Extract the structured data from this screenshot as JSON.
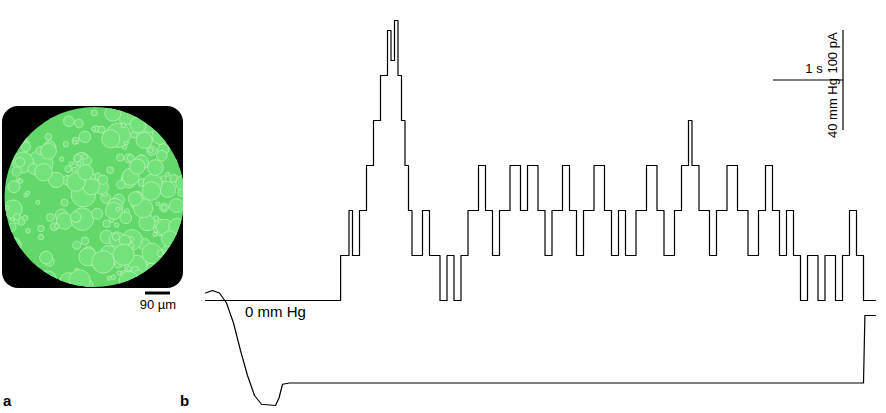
{
  "image_panel": {
    "letter": "a",
    "scale_bar_label": "90 µm"
  },
  "chart_data": {
    "letter": "b",
    "type": "line",
    "tick_labels": false,
    "color": "#000000",
    "xlim": [
      0,
      9.6
    ],
    "current_trace": {
      "line_style": "step",
      "ylim": [
        -220,
        580
      ],
      "x": [
        0,
        1.93,
        2.05,
        2.1,
        2.2,
        2.3,
        2.4,
        2.5,
        2.6,
        2.65,
        2.7,
        2.75,
        2.8,
        2.85,
        2.9,
        2.95,
        3.1,
        3.2,
        3.35,
        3.45,
        3.55,
        3.65,
        3.75,
        3.9,
        4.0,
        4.1,
        4.2,
        4.35,
        4.5,
        4.6,
        4.75,
        4.85,
        4.95,
        5.1,
        5.2,
        5.3,
        5.4,
        5.55,
        5.7,
        5.8,
        5.9,
        6.0,
        6.15,
        6.3,
        6.45,
        6.55,
        6.7,
        6.8,
        6.9,
        6.95,
        7.05,
        7.2,
        7.3,
        7.45,
        7.6,
        7.75,
        7.9,
        8.0,
        8.1,
        8.2,
        8.3,
        8.4,
        8.5,
        8.6,
        8.75,
        8.85,
        9.0,
        9.1,
        9.2,
        9.3,
        9.4,
        9.57
      ],
      "values": [
        0,
        90,
        180,
        90,
        180,
        270,
        360,
        450,
        540,
        480,
        560,
        450,
        360,
        270,
        180,
        90,
        180,
        90,
        0,
        90,
        0,
        90,
        180,
        270,
        180,
        90,
        180,
        270,
        180,
        270,
        180,
        90,
        180,
        270,
        180,
        90,
        180,
        270,
        180,
        90,
        180,
        90,
        180,
        270,
        180,
        90,
        180,
        270,
        360,
        270,
        180,
        90,
        180,
        270,
        180,
        90,
        180,
        270,
        180,
        90,
        180,
        90,
        0,
        90,
        0,
        90,
        0,
        90,
        180,
        90,
        0,
        0
      ]
    },
    "pressure_trace": {
      "line_style": "solid",
      "ylim": [
        -90,
        230
      ],
      "x": [
        0,
        0.1,
        0.2,
        0.3,
        0.4,
        0.5,
        0.6,
        0.7,
        0.8,
        1.0,
        1.05,
        1.1,
        1.2,
        9.4,
        9.42,
        9.57
      ],
      "values": [
        4,
        6,
        4,
        -4,
        -20,
        -42,
        -62,
        -78,
        -85,
        -86,
        -80,
        -69,
        -68,
        -68,
        -14,
        -14
      ],
      "annotation": {
        "text": "0 mm Hg",
        "value": 0
      }
    },
    "scale_bars": [
      {
        "value": 100,
        "label": "100 pA",
        "axis": "current"
      },
      {
        "value": 40,
        "label": "40 mm Hg",
        "axis": "pressure"
      },
      {
        "value": 1,
        "label": "1 s",
        "axis": "x"
      }
    ]
  }
}
